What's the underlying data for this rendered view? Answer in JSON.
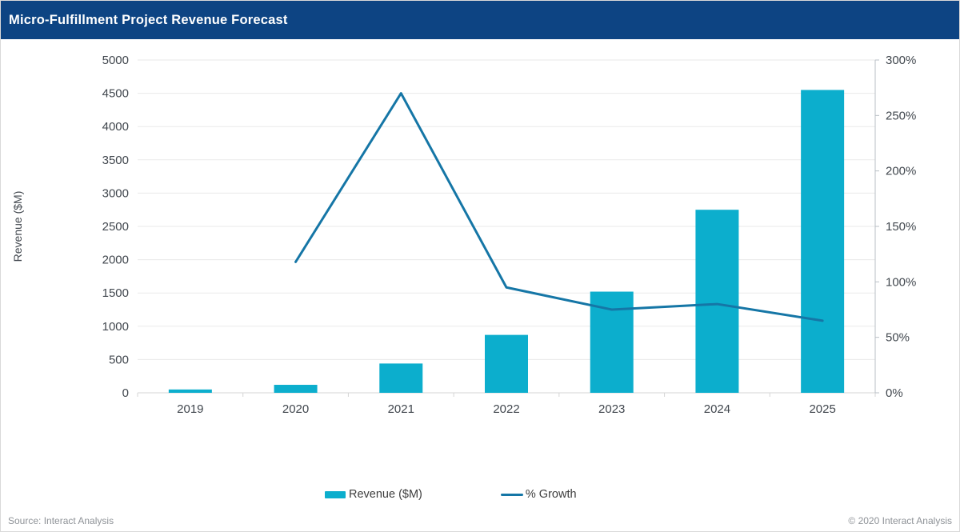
{
  "header": {
    "title": "Micro-Fulfillment Project Revenue Forecast"
  },
  "chart_data": {
    "type": "bar",
    "title": "Micro-Fulfillment Project Revenue Forecast",
    "categories": [
      "2019",
      "2020",
      "2021",
      "2022",
      "2023",
      "2024",
      "2025"
    ],
    "series": [
      {
        "name": "Revenue ($M)",
        "type": "bar",
        "axis": "left",
        "values": [
          50,
          120,
          440,
          870,
          1520,
          2750,
          4550
        ]
      },
      {
        "name": "% Growth",
        "type": "line",
        "axis": "right",
        "unit": "%",
        "values": [
          null,
          118,
          270,
          95,
          75,
          80,
          65
        ]
      }
    ],
    "left_axis": {
      "title": "Revenue ($M)",
      "min": 0,
      "max": 5000,
      "step": 500,
      "tick_labels": [
        "0",
        "500",
        "1000",
        "1500",
        "2000",
        "2500",
        "3000",
        "3500",
        "4000",
        "4500",
        "5000"
      ]
    },
    "right_axis": {
      "min": 0,
      "max": 300,
      "step": 50,
      "tick_labels": [
        "0%",
        "50%",
        "100%",
        "150%",
        "200%",
        "250%",
        "300%"
      ]
    },
    "grid": true,
    "legend_position": "bottom"
  },
  "footer": {
    "source": "Source: Interact Analysis",
    "copyright": "© 2020 Interact Analysis"
  },
  "colors": {
    "header_bg": "#0d4483",
    "bar": "#0caecd",
    "line": "#1576a6",
    "grid": "#eaeaea",
    "axis_line": "#d5d5d5",
    "right_axis": "#b9bfc5",
    "tick_text": "#41474e"
  }
}
